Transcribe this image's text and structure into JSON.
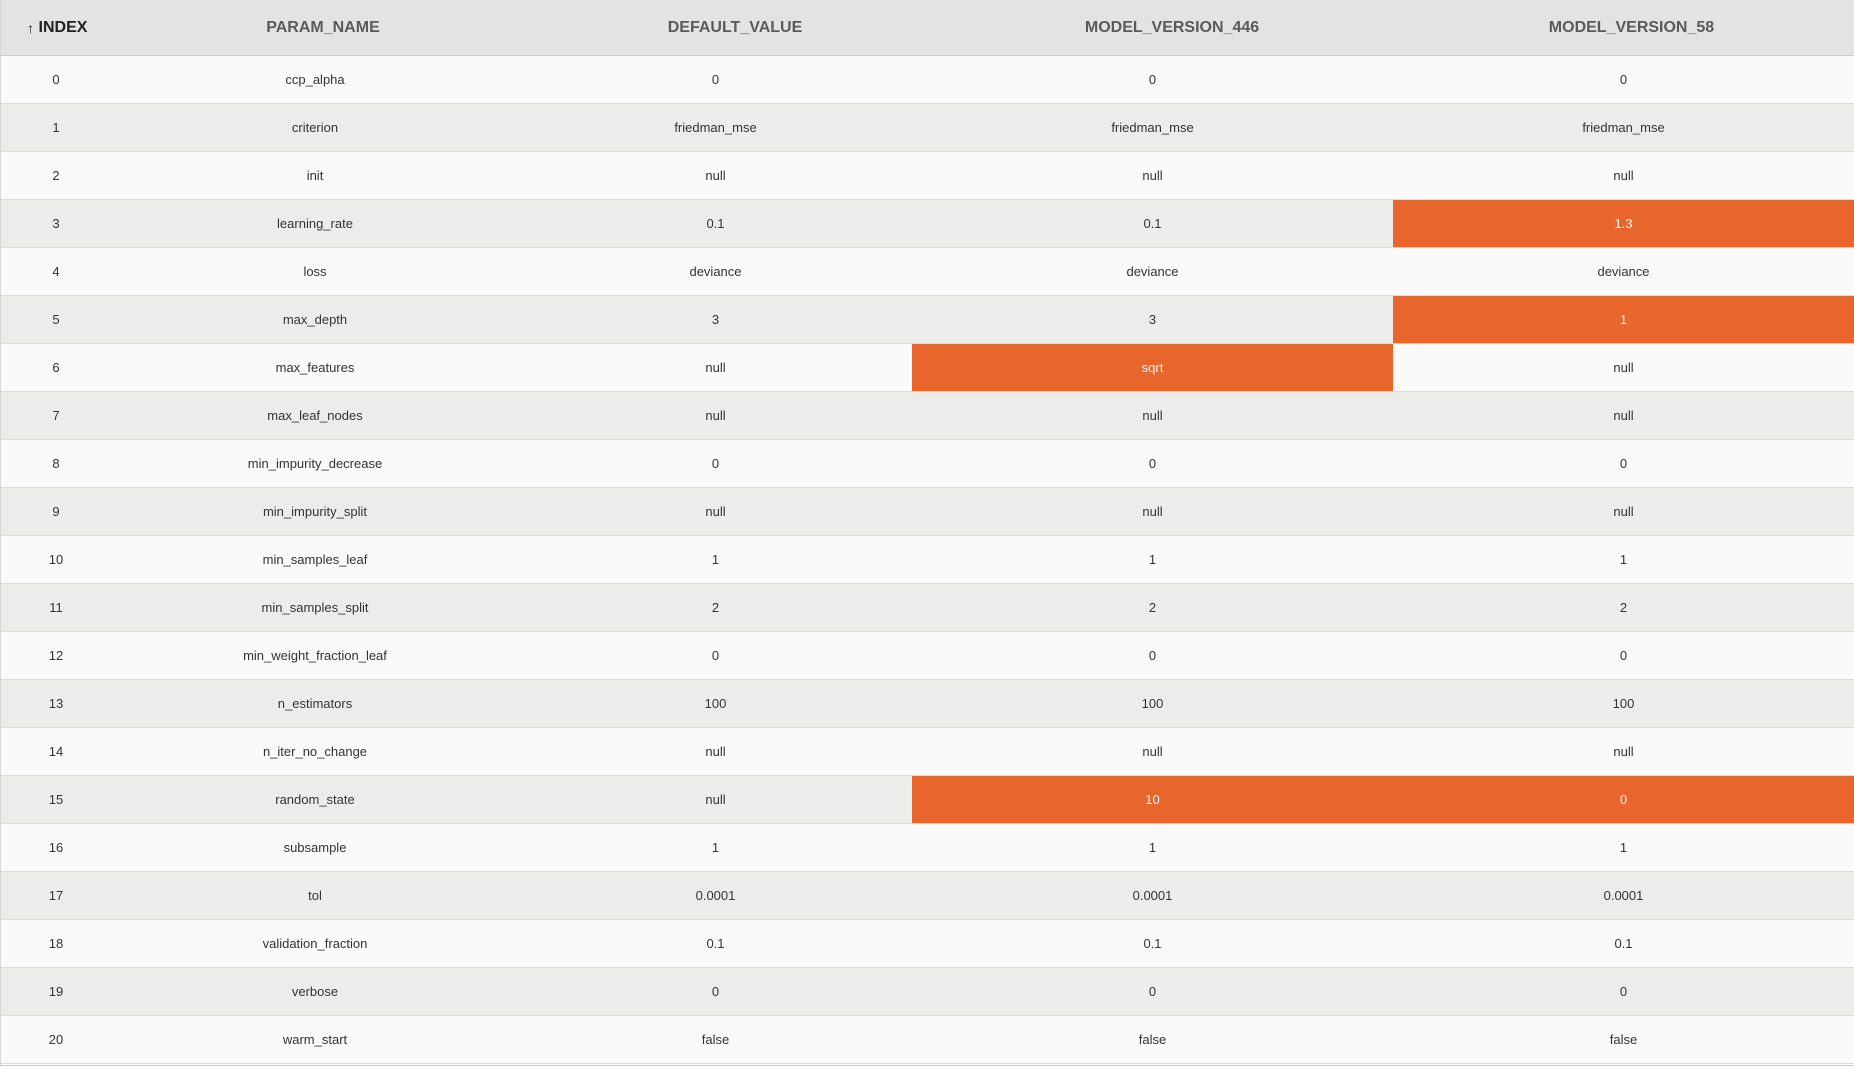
{
  "table": {
    "columns": [
      {
        "key": "index",
        "label": "INDEX",
        "sorted": "asc",
        "sort_icon": "arrow-up-icon"
      },
      {
        "key": "param_name",
        "label": "PARAM_NAME"
      },
      {
        "key": "default_value",
        "label": "DEFAULT_VALUE"
      },
      {
        "key": "model_version_446",
        "label": "MODEL_VERSION_446"
      },
      {
        "key": "model_version_58",
        "label": "MODEL_VERSION_58"
      }
    ],
    "highlight_color": "#e8652b",
    "rows": [
      {
        "index": "0",
        "param_name": "ccp_alpha",
        "default_value": "0",
        "model_version_446": "0",
        "model_version_58": "0",
        "diff": []
      },
      {
        "index": "1",
        "param_name": "criterion",
        "default_value": "friedman_mse",
        "model_version_446": "friedman_mse",
        "model_version_58": "friedman_mse",
        "diff": []
      },
      {
        "index": "2",
        "param_name": "init",
        "default_value": "null",
        "model_version_446": "null",
        "model_version_58": "null",
        "diff": []
      },
      {
        "index": "3",
        "param_name": "learning_rate",
        "default_value": "0.1",
        "model_version_446": "0.1",
        "model_version_58": "1.3",
        "diff": [
          "model_version_58"
        ]
      },
      {
        "index": "4",
        "param_name": "loss",
        "default_value": "deviance",
        "model_version_446": "deviance",
        "model_version_58": "deviance",
        "diff": []
      },
      {
        "index": "5",
        "param_name": "max_depth",
        "default_value": "3",
        "model_version_446": "3",
        "model_version_58": "1",
        "diff": [
          "model_version_58"
        ]
      },
      {
        "index": "6",
        "param_name": "max_features",
        "default_value": "null",
        "model_version_446": "sqrt",
        "model_version_58": "null",
        "diff": [
          "model_version_446"
        ]
      },
      {
        "index": "7",
        "param_name": "max_leaf_nodes",
        "default_value": "null",
        "model_version_446": "null",
        "model_version_58": "null",
        "diff": []
      },
      {
        "index": "8",
        "param_name": "min_impurity_decrease",
        "default_value": "0",
        "model_version_446": "0",
        "model_version_58": "0",
        "diff": []
      },
      {
        "index": "9",
        "param_name": "min_impurity_split",
        "default_value": "null",
        "model_version_446": "null",
        "model_version_58": "null",
        "diff": []
      },
      {
        "index": "10",
        "param_name": "min_samples_leaf",
        "default_value": "1",
        "model_version_446": "1",
        "model_version_58": "1",
        "diff": []
      },
      {
        "index": "11",
        "param_name": "min_samples_split",
        "default_value": "2",
        "model_version_446": "2",
        "model_version_58": "2",
        "diff": []
      },
      {
        "index": "12",
        "param_name": "min_weight_fraction_leaf",
        "default_value": "0",
        "model_version_446": "0",
        "model_version_58": "0",
        "diff": []
      },
      {
        "index": "13",
        "param_name": "n_estimators",
        "default_value": "100",
        "model_version_446": "100",
        "model_version_58": "100",
        "diff": []
      },
      {
        "index": "14",
        "param_name": "n_iter_no_change",
        "default_value": "null",
        "model_version_446": "null",
        "model_version_58": "null",
        "diff": []
      },
      {
        "index": "15",
        "param_name": "random_state",
        "default_value": "null",
        "model_version_446": "10",
        "model_version_58": "0",
        "diff": [
          "model_version_446",
          "model_version_58"
        ]
      },
      {
        "index": "16",
        "param_name": "subsample",
        "default_value": "1",
        "model_version_446": "1",
        "model_version_58": "1",
        "diff": []
      },
      {
        "index": "17",
        "param_name": "tol",
        "default_value": "0.0001",
        "model_version_446": "0.0001",
        "model_version_58": "0.0001",
        "diff": []
      },
      {
        "index": "18",
        "param_name": "validation_fraction",
        "default_value": "0.1",
        "model_version_446": "0.1",
        "model_version_58": "0.1",
        "diff": []
      },
      {
        "index": "19",
        "param_name": "verbose",
        "default_value": "0",
        "model_version_446": "0",
        "model_version_58": "0",
        "diff": []
      },
      {
        "index": "20",
        "param_name": "warm_start",
        "default_value": "false",
        "model_version_446": "false",
        "model_version_58": "false",
        "diff": []
      }
    ]
  }
}
